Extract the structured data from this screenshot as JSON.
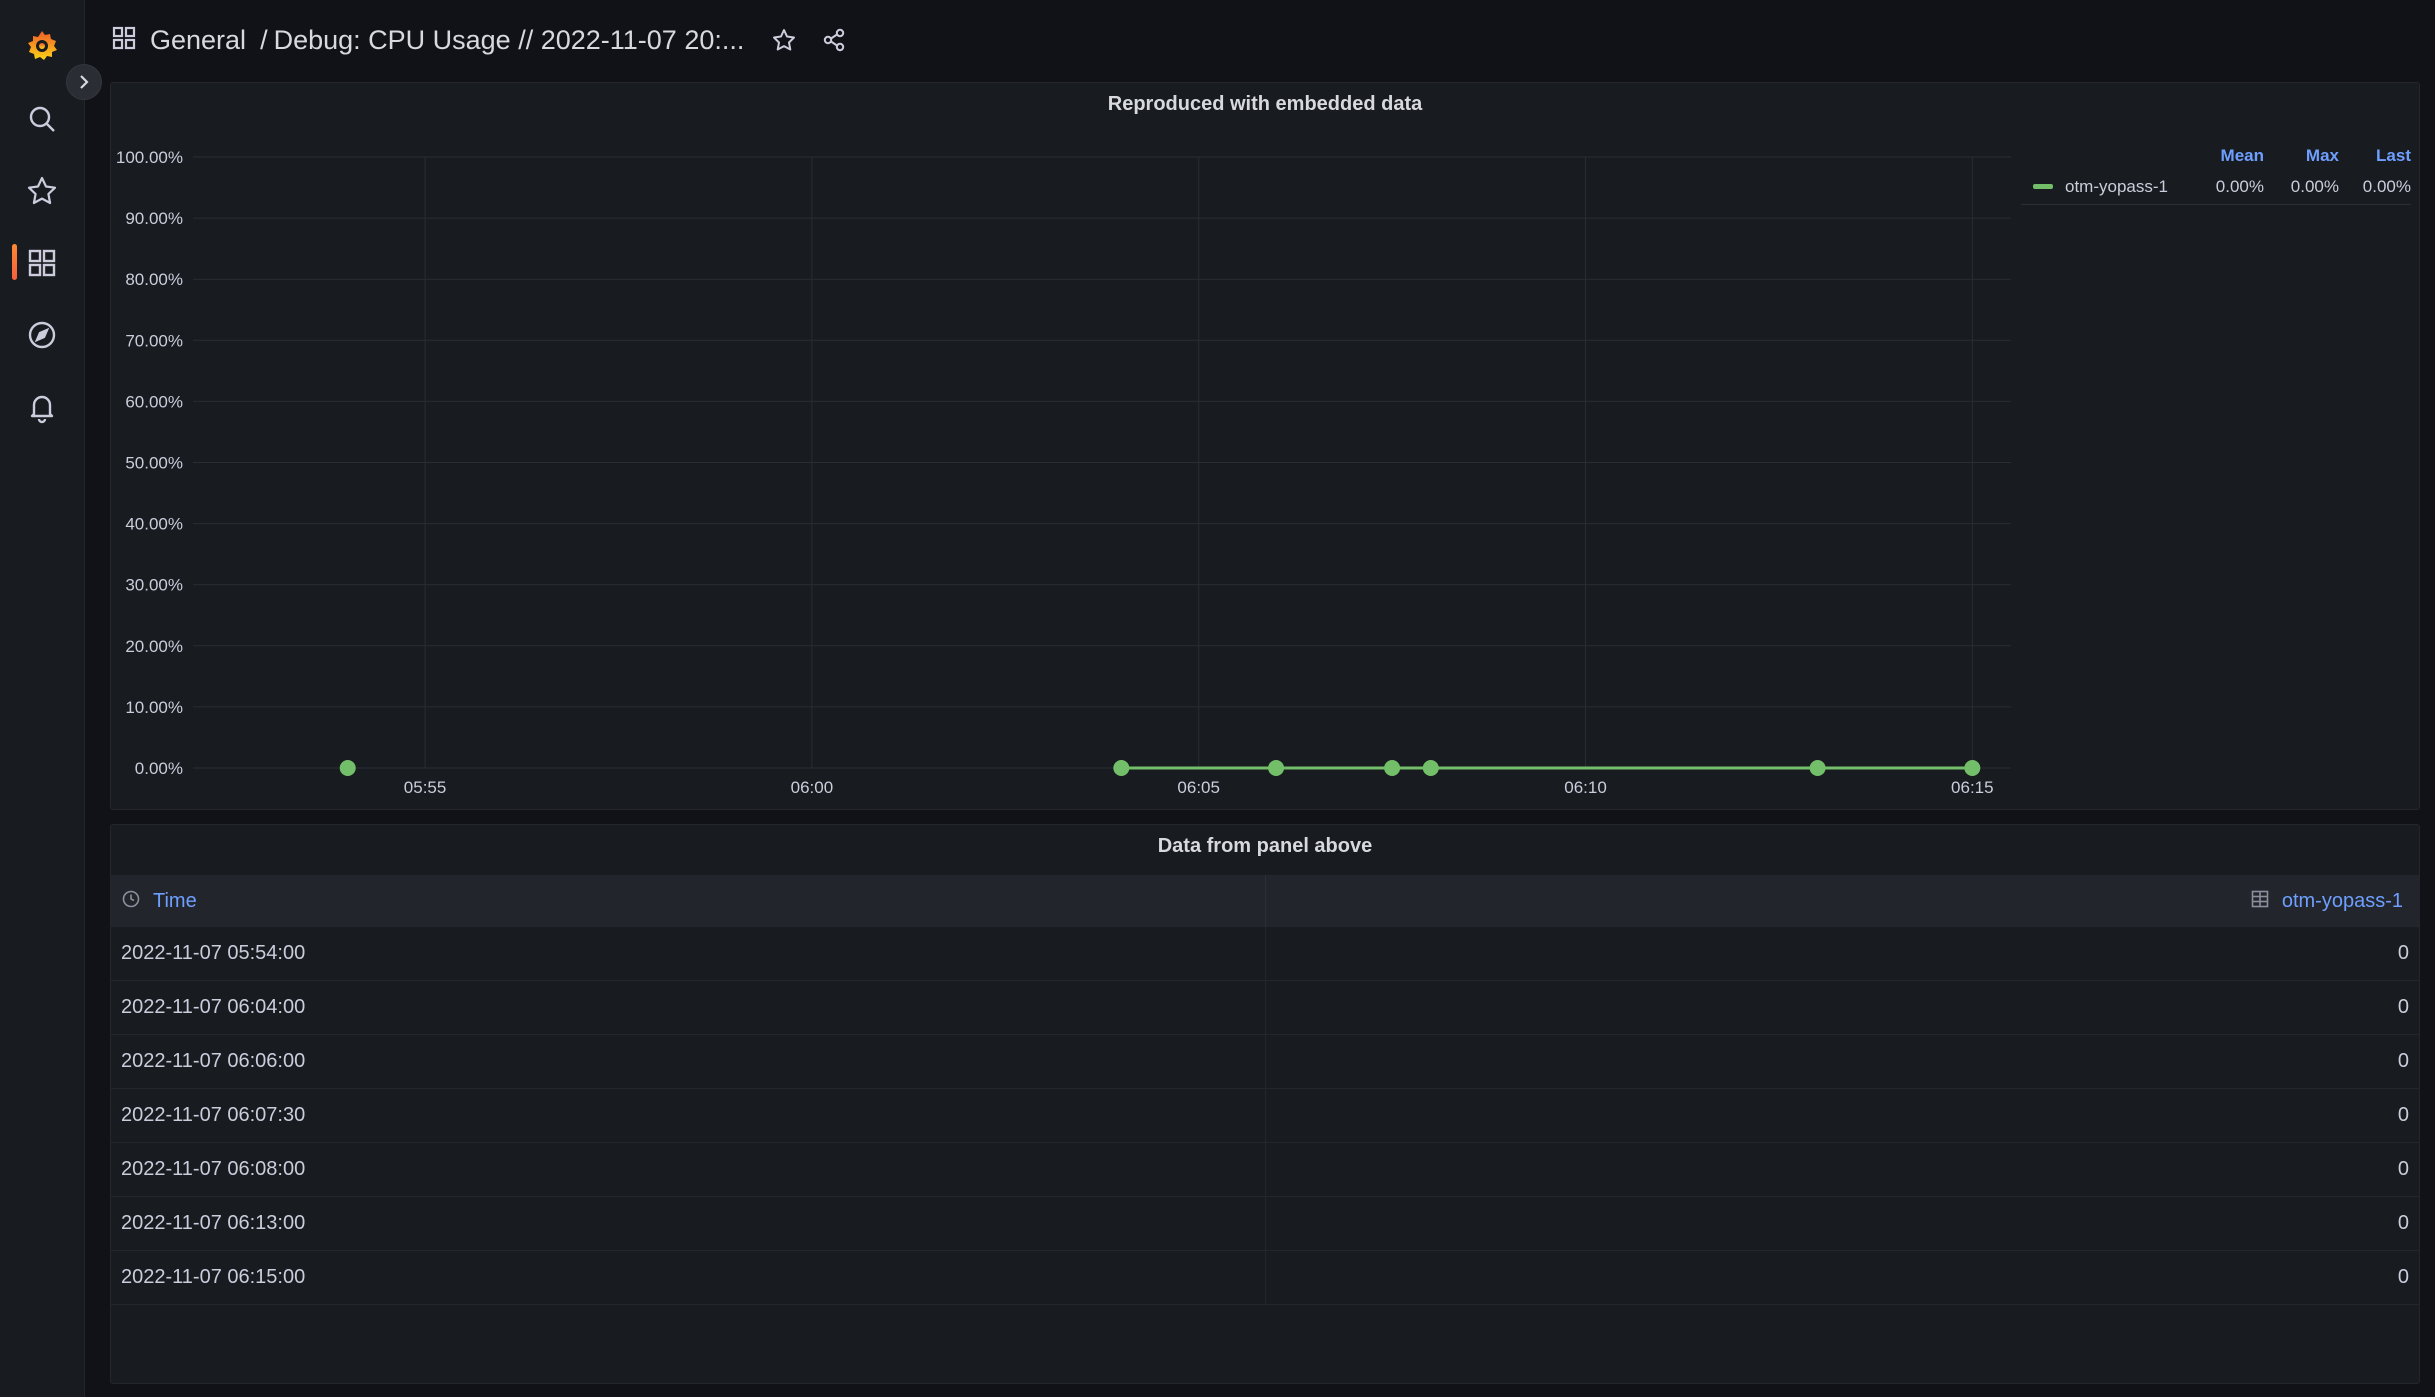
{
  "breadcrumb": {
    "folder": "General",
    "separator": "/",
    "title": "Debug: CPU Usage // 2022-11-07 20:..."
  },
  "colors": {
    "accent": "#6e9fff",
    "series": "#73bf69",
    "active_nav": "#ff8833"
  },
  "sidebar": {
    "items": [
      {
        "name": "grafana-logo-icon"
      },
      {
        "name": "search-icon"
      },
      {
        "name": "starred-icon"
      },
      {
        "name": "dashboards-icon",
        "active": true
      },
      {
        "name": "explore-icon"
      },
      {
        "name": "alerting-icon"
      }
    ]
  },
  "graph_panel": {
    "title": "Reproduced with embedded data",
    "legend": {
      "headers": [
        "Mean",
        "Max",
        "Last"
      ],
      "series_name": "otm-yopass-1",
      "mean": "0.00%",
      "max": "0.00%",
      "last": "0.00%"
    }
  },
  "chart_data": {
    "type": "line",
    "title": "Reproduced with embedded data",
    "xlabel": "",
    "ylabel": "",
    "x_ticks": [
      "05:55",
      "06:00",
      "06:05",
      "06:10",
      "06:15"
    ],
    "y_ticks": [
      "0.00%",
      "10.00%",
      "20.00%",
      "30.00%",
      "40.00%",
      "50.00%",
      "60.00%",
      "70.00%",
      "80.00%",
      "90.00%",
      "100.00%"
    ],
    "ylim": [
      0,
      100
    ],
    "xlim": [
      "05:52:00",
      "06:15:30"
    ],
    "grid": true,
    "legend_position": "top-right",
    "series": [
      {
        "name": "otm-yopass-1",
        "x": [
          "05:54:00",
          "06:04:00",
          "06:06:00",
          "06:07:30",
          "06:08:00",
          "06:13:00",
          "06:15:00"
        ],
        "values": [
          0,
          0,
          0,
          0,
          0,
          0,
          0
        ]
      }
    ]
  },
  "table_panel": {
    "title": "Data from panel above",
    "columns": [
      "Time",
      "otm-yopass-1"
    ],
    "rows": [
      {
        "time": "2022-11-07 05:54:00",
        "value": "0"
      },
      {
        "time": "2022-11-07 06:04:00",
        "value": "0"
      },
      {
        "time": "2022-11-07 06:06:00",
        "value": "0"
      },
      {
        "time": "2022-11-07 06:07:30",
        "value": "0"
      },
      {
        "time": "2022-11-07 06:08:00",
        "value": "0"
      },
      {
        "time": "2022-11-07 06:13:00",
        "value": "0"
      },
      {
        "time": "2022-11-07 06:15:00",
        "value": "0"
      }
    ]
  }
}
